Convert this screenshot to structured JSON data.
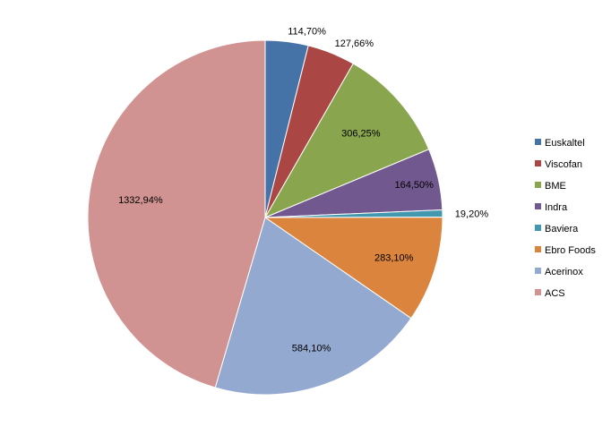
{
  "chart_data": {
    "type": "pie",
    "title": "",
    "legend_position": "right",
    "start_angle_deg": 0,
    "direction": "clockwise",
    "categories": [
      "Euskaltel",
      "Viscofan",
      "BME",
      "Indra",
      "Baviera",
      "Ebro Foods",
      "Acerinox",
      "ACS"
    ],
    "values": [
      114.7,
      127.66,
      306.25,
      164.5,
      19.2,
      283.1,
      584.1,
      1332.94
    ],
    "labels": [
      "114,70%",
      "127,66%",
      "306,25%",
      "164,50%",
      "19,20%",
      "283,10%",
      "584,10%",
      "1332,94%"
    ],
    "colors": [
      "#4572A7",
      "#AA4643",
      "#89A54E",
      "#71588F",
      "#4198AF",
      "#DB843D",
      "#93A9CF",
      "#D19392"
    ]
  }
}
